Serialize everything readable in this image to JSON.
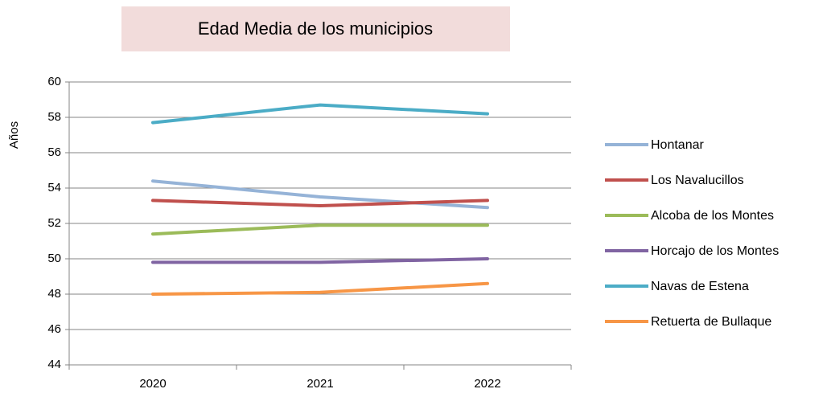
{
  "chart_data": {
    "type": "line",
    "title": "Edad Media de los municipios",
    "y_label": "Años",
    "categories": [
      "2020",
      "2021",
      "2022"
    ],
    "series": [
      {
        "name": "Hontanar",
        "color": "#95b3d7",
        "values": [
          54.4,
          53.5,
          52.9
        ]
      },
      {
        "name": "Los Navalucillos",
        "color": "#c0504d",
        "values": [
          53.3,
          53.0,
          53.3
        ]
      },
      {
        "name": "Alcoba de los Montes",
        "color": "#9bbb59",
        "values": [
          51.4,
          51.9,
          51.9
        ]
      },
      {
        "name": "Horcajo de los Montes",
        "color": "#8064a2",
        "values": [
          49.8,
          49.8,
          50.0
        ]
      },
      {
        "name": "Navas de Estena",
        "color": "#4bacc6",
        "values": [
          57.7,
          58.7,
          58.2
        ]
      },
      {
        "name": "Retuerta de Bullaque",
        "color": "#f79646",
        "values": [
          48.0,
          48.1,
          48.6
        ]
      }
    ],
    "ylim": [
      44,
      60
    ],
    "yticks": [
      44,
      46,
      48,
      50,
      52,
      54,
      56,
      58,
      60
    ],
    "grid": true,
    "legend": "right"
  }
}
